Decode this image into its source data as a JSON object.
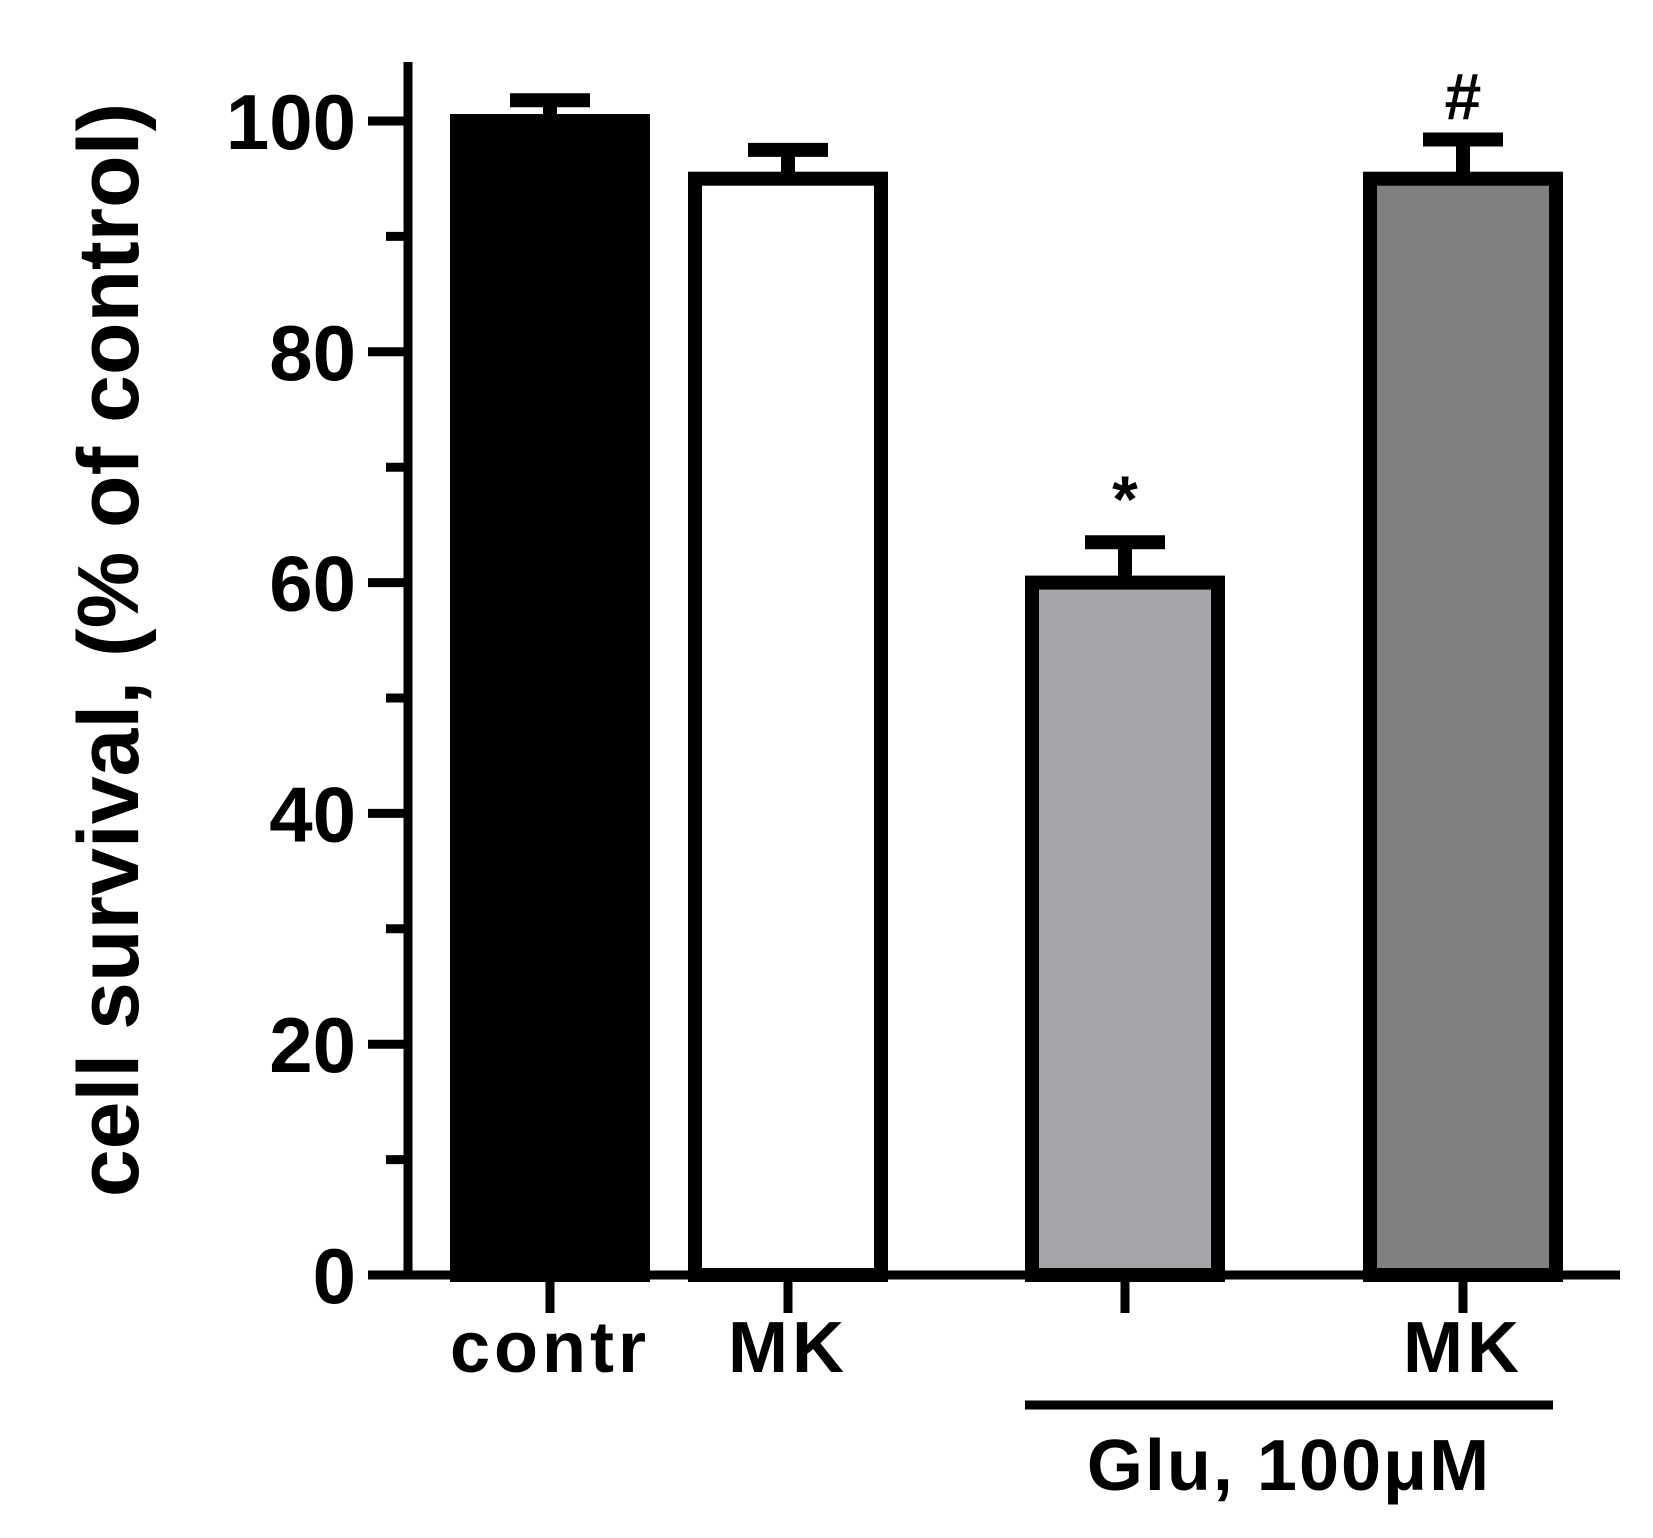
{
  "chart_data": {
    "type": "bar",
    "ylabel": "cell survival, (% of control)",
    "ylim": [
      0,
      100
    ],
    "yticks": [
      "0",
      "20",
      "40",
      "60",
      "80",
      "100"
    ],
    "minor_ticks": true,
    "grid": false,
    "categories": [
      "contr",
      "MK",
      "",
      "MK"
    ],
    "values": [
      100,
      95,
      60,
      95
    ],
    "errors": [
      1.8,
      2.5,
      3.5,
      3.4
    ],
    "colors": [
      "#000000",
      "#ffffff",
      "#a6a5aa",
      "#808080"
    ],
    "annotations": [
      "",
      "",
      "*",
      "#"
    ],
    "group_label": {
      "text": "Glu, 100μM",
      "spans_categories": [
        2,
        3
      ]
    }
  }
}
